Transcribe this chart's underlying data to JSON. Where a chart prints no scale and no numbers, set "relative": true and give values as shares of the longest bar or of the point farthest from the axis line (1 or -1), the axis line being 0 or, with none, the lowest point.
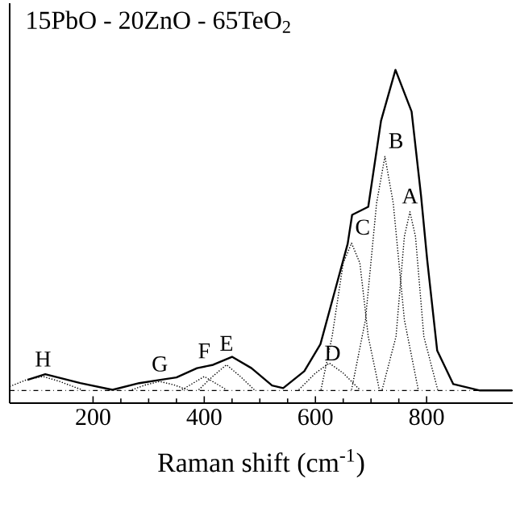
{
  "chart_data": {
    "type": "line",
    "title": "15PbO - 20ZnO - 65TeO$_{2}$",
    "xlabel": "Raman shift  (cm$^{-1}$)",
    "relative": true,
    "xlim": [
      50,
      955
    ],
    "xticks": [
      200,
      400,
      600,
      800
    ],
    "marker": "none",
    "ref_lines": [
      {
        "axis": "y",
        "value": 0.038,
        "color": "#000000",
        "line_style": "dashed"
      }
    ],
    "series": [
      {
        "color": "#000000",
        "line_style": "solid",
        "x": [
          82,
          114,
          177,
          235,
          283,
          321,
          350,
          387,
          416,
          450,
          485,
          522,
          542,
          580,
          609,
          637,
          658,
          666,
          695,
          718,
          744,
          773,
          790,
          801,
          819,
          848,
          896,
          954
        ],
        "values": [
          0.07,
          0.087,
          0.06,
          0.04,
          0.06,
          0.07,
          0.077,
          0.105,
          0.115,
          0.139,
          0.105,
          0.053,
          0.045,
          0.096,
          0.177,
          0.349,
          0.478,
          0.565,
          0.589,
          0.847,
          1.0,
          0.875,
          0.622,
          0.431,
          0.158,
          0.057,
          0.038,
          0.038
        ]
      },
      {
        "name": "A",
        "color": "#000000",
        "line_style": "dotted",
        "x": [
          720,
          745,
          760,
          770,
          780,
          795,
          820
        ],
        "values": [
          0.04,
          0.2,
          0.5,
          0.574,
          0.5,
          0.2,
          0.04
        ]
      },
      {
        "name": "B",
        "color": "#000000",
        "line_style": "dotted",
        "x": [
          665,
          690,
          710,
          725,
          740,
          760,
          785
        ],
        "values": [
          0.04,
          0.25,
          0.6,
          0.74,
          0.6,
          0.25,
          0.04
        ]
      },
      {
        "name": "C",
        "color": "#000000",
        "line_style": "dotted",
        "x": [
          610,
          630,
          650,
          665,
          680,
          695,
          715
        ],
        "values": [
          0.04,
          0.2,
          0.42,
          0.48,
          0.42,
          0.2,
          0.04
        ]
      },
      {
        "name": "D",
        "color": "#000000",
        "line_style": "dotted",
        "x": [
          570,
          600,
          625,
          650,
          680
        ],
        "values": [
          0.04,
          0.09,
          0.12,
          0.09,
          0.04
        ]
      },
      {
        "name": "E",
        "color": "#000000",
        "line_style": "dotted",
        "x": [
          390,
          415,
          440,
          465,
          490
        ],
        "values": [
          0.04,
          0.08,
          0.115,
          0.08,
          0.04
        ]
      },
      {
        "name": "F",
        "color": "#000000",
        "line_style": "dotted",
        "x": [
          360,
          380,
          400,
          420,
          440
        ],
        "values": [
          0.04,
          0.06,
          0.08,
          0.06,
          0.04
        ]
      },
      {
        "name": "G",
        "color": "#000000",
        "line_style": "dotted",
        "x": [
          270,
          295,
          320,
          345,
          370
        ],
        "values": [
          0.04,
          0.055,
          0.065,
          0.055,
          0.04
        ]
      },
      {
        "name": "H",
        "color": "#000000",
        "line_style": "dotted",
        "x": [
          50,
          80,
          110,
          140,
          180
        ],
        "values": [
          0.05,
          0.07,
          0.08,
          0.065,
          0.04
        ]
      }
    ]
  }
}
